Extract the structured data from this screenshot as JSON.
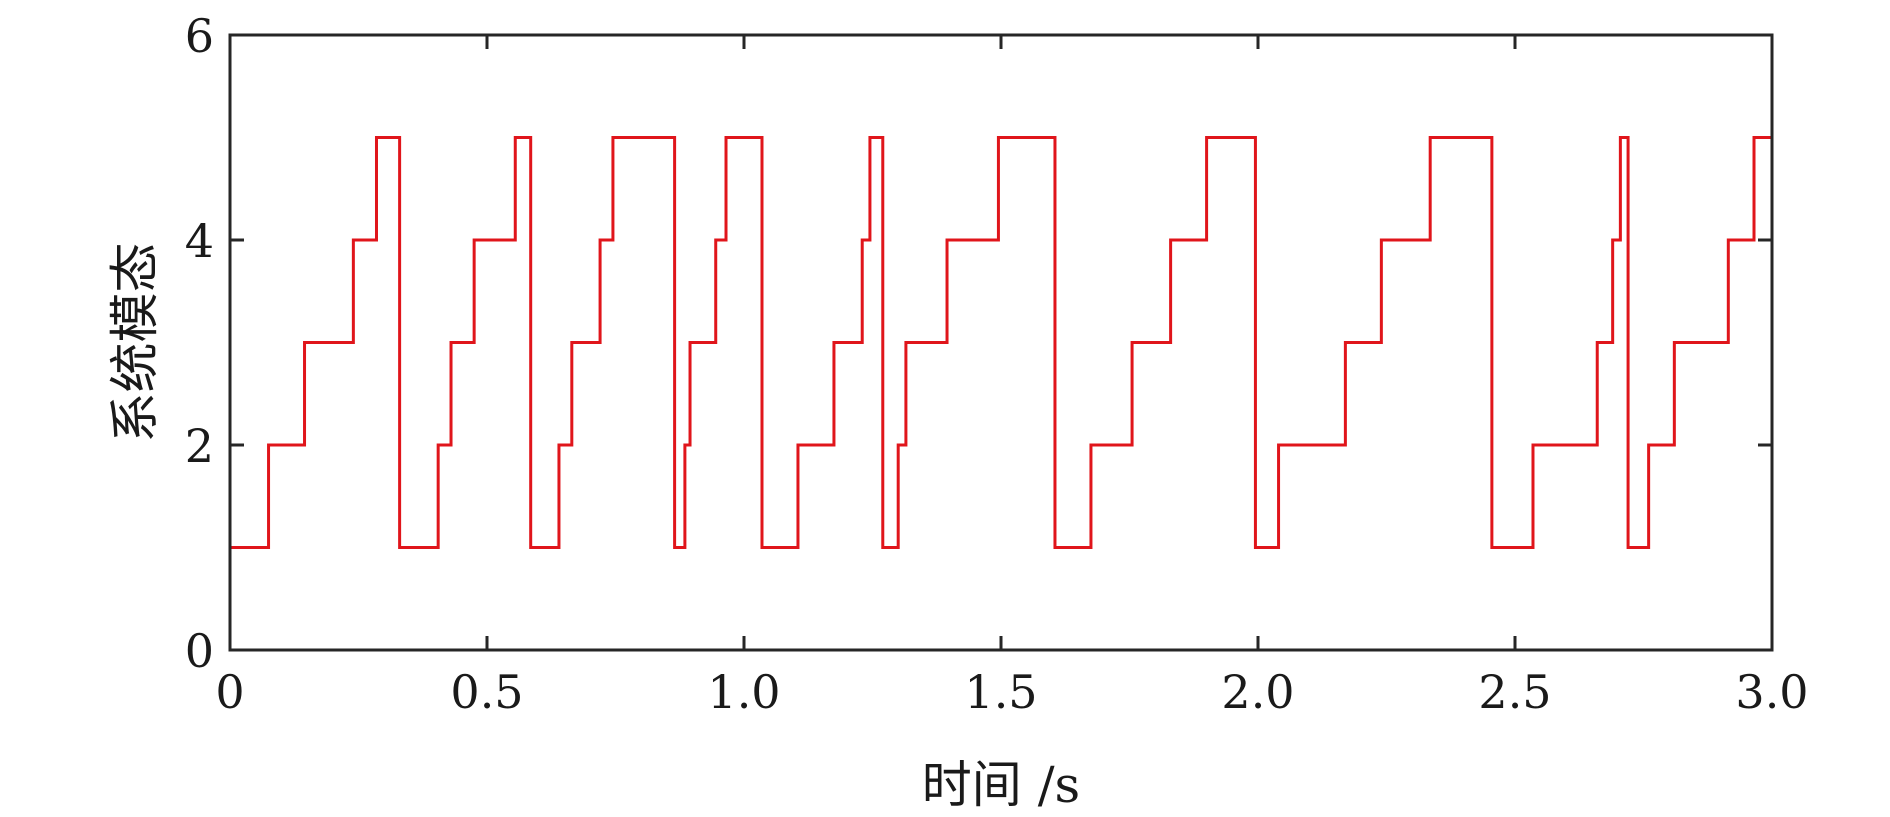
{
  "chart_data": {
    "type": "line",
    "title": "",
    "xlabel": "时间 /s",
    "ylabel": "系统模态",
    "xlim": [
      0,
      3.0
    ],
    "ylim": [
      0,
      6
    ],
    "xticks": [
      0,
      0.5,
      1.0,
      1.5,
      2.0,
      2.5,
      3.0
    ],
    "xtick_labels": [
      "0",
      "0.5",
      "1.0",
      "1.5",
      "2.0",
      "2.5",
      "3.0"
    ],
    "yticks": [
      0,
      2,
      4,
      6
    ],
    "ytick_labels": [
      "0",
      "2",
      "4",
      "6"
    ],
    "grid": false,
    "legend": "none",
    "series": [
      {
        "step": "post",
        "color": "#e0151b",
        "x": [
          0,
          0.075,
          0.145,
          0.24,
          0.285,
          0.33,
          0.405,
          0.43,
          0.475,
          0.555,
          0.585,
          0.64,
          0.665,
          0.72,
          0.745,
          0.865,
          0.885,
          0.895,
          0.945,
          0.965,
          1.035,
          1.105,
          1.175,
          1.23,
          1.245,
          1.27,
          1.3,
          1.315,
          1.395,
          1.495,
          1.605,
          1.675,
          1.755,
          1.83,
          1.9,
          1.995,
          2.04,
          2.17,
          2.24,
          2.335,
          2.455,
          2.535,
          2.66,
          2.69,
          2.705,
          2.72,
          2.76,
          2.81,
          2.915,
          2.965,
          3.0
        ],
        "y": [
          1,
          2,
          3,
          4,
          5,
          1,
          2,
          3,
          4,
          5,
          1,
          2,
          3,
          4,
          5,
          1,
          2,
          3,
          4,
          5,
          1,
          2,
          3,
          4,
          5,
          1,
          2,
          3,
          4,
          5,
          1,
          2,
          3,
          4,
          5,
          1,
          2,
          3,
          4,
          5,
          1,
          2,
          3,
          4,
          5,
          1,
          2,
          3,
          4,
          5,
          1
        ]
      }
    ]
  }
}
